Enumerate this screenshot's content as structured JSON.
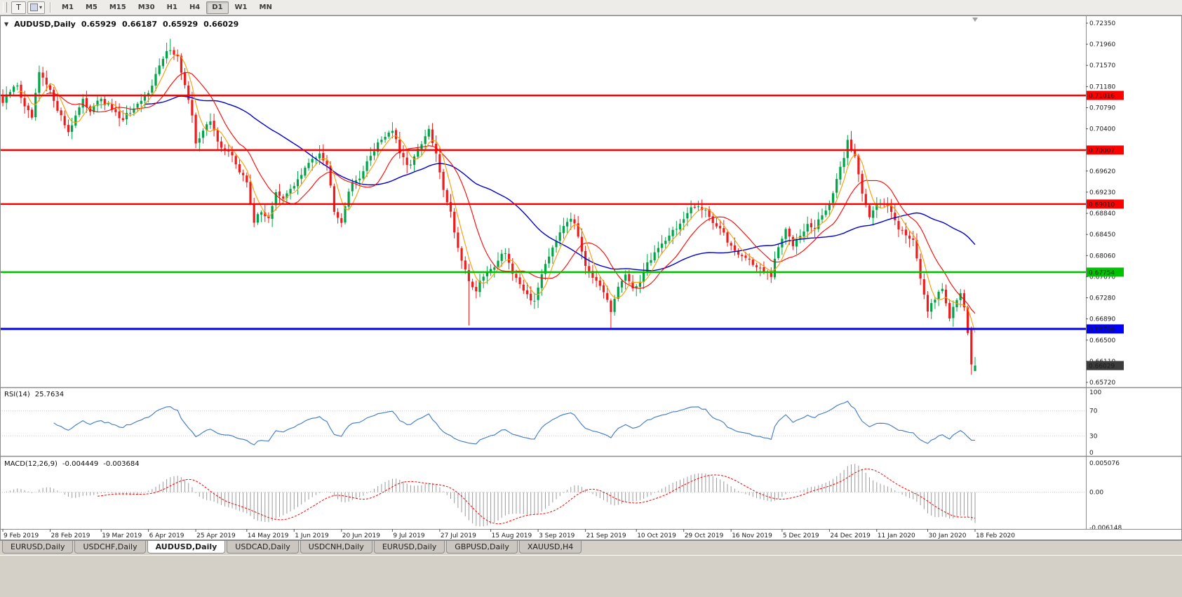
{
  "toolbar": {
    "tool_button": "T",
    "timeframes": [
      "M1",
      "M5",
      "M15",
      "M30",
      "H1",
      "H4",
      "D1",
      "W1",
      "MN"
    ],
    "active_timeframe": "D1"
  },
  "chart": {
    "symbol_title": "AUDUSD,Daily",
    "open": "0.65929",
    "high": "0.66187",
    "low": "0.65929",
    "close": "0.66029"
  },
  "rsi": {
    "label": "RSI(14)",
    "value": "25.7634",
    "period": 14,
    "levels": [
      "100",
      "70",
      "30",
      "0"
    ],
    "color": "#3c78c8"
  },
  "macd": {
    "label": "MACD(12,26,9)",
    "macd_value": "-0.004449",
    "signal_value": "-0.003684",
    "fast": 12,
    "slow": 26,
    "signal": 9,
    "hist_color": "#9a9a9a",
    "signal_color": "#ff0000",
    "ticks": [
      {
        "label": "0.005076",
        "value": 0.005076
      },
      {
        "label": "0.00",
        "value": 0
      },
      {
        "label": "-0.006148",
        "value": -0.006148
      }
    ]
  },
  "price_axis": {
    "ticks": [
      "0.72350",
      "0.71960",
      "0.71570",
      "0.71180",
      "0.70790",
      "0.70400",
      "0.70010",
      "0.69620",
      "0.69230",
      "0.68840",
      "0.68450",
      "0.68060",
      "0.67670",
      "0.67280",
      "0.66890",
      "0.66500",
      "0.66110",
      "0.65720"
    ]
  },
  "time_axis": {
    "labels": [
      "9 Feb 2019",
      "28 Feb 2019",
      "19 Mar 2019",
      "6 Apr 2019",
      "25 Apr 2019",
      "14 May 2019",
      "1 Jun 2019",
      "20 Jun 2019",
      "9 Jul 2019",
      "27 Jul 2019",
      "15 Aug 2019",
      "3 Sep 2019",
      "21 Sep 2019",
      "10 Oct 2019",
      "29 Oct 2019",
      "16 Nov 2019",
      "5 Dec 2019",
      "24 Dec 2019",
      "11 Jan 2020",
      "30 Jan 2020",
      "18 Feb 2020"
    ]
  },
  "tabs": {
    "items": [
      "EURUSD,Daily",
      "USDCHF,Daily",
      "AUDUSD,Daily",
      "USDCAD,Daily",
      "USDCNH,Daily",
      "EURUSD,Daily",
      "GBPUSD,Daily",
      "XAUUSD,H4"
    ],
    "active_index": 2
  },
  "chart_data": {
    "type": "candlestick",
    "symbol": "AUDUSD",
    "period": "Daily",
    "bars_total": 268,
    "price_top_tick": 0.7235,
    "price_bottom_tick": 0.6572,
    "current_price": 0.66029,
    "current_badge_color": "#3c3c3c",
    "colors": {
      "up": "#00a447",
      "down": "#ee1c1c"
    },
    "levels": [
      {
        "label": "0.71016",
        "value": 0.71016,
        "color": "#ff0000",
        "width": 2.5
      },
      {
        "label": "0.70007",
        "value": 0.70007,
        "color": "#ff0000",
        "width": 2.5
      },
      {
        "label": "0.69010",
        "value": 0.6901,
        "color": "#ff0000",
        "width": 2.5
      },
      {
        "label": "0.67754",
        "value": 0.67754,
        "color": "#00c300",
        "width": 2.5
      },
      {
        "label": "0.66706",
        "value": 0.66706,
        "color": "#0000ff",
        "width": 3
      }
    ],
    "moving_averages": [
      {
        "period": 40,
        "color": "#0000cc",
        "width": 1.4
      },
      {
        "period": 13,
        "color": "#ff0000",
        "width": 1.1
      },
      {
        "period": 5,
        "color": "#ff9900",
        "width": 1.1
      }
    ],
    "close_anchors": [
      [
        0,
        0.7088
      ],
      [
        2,
        0.7108
      ],
      [
        4,
        0.7122
      ],
      [
        6,
        0.7078
      ],
      [
        8,
        0.706
      ],
      [
        10,
        0.7142
      ],
      [
        12,
        0.712
      ],
      [
        14,
        0.7095
      ],
      [
        16,
        0.7062
      ],
      [
        18,
        0.7035
      ],
      [
        20,
        0.7065
      ],
      [
        22,
        0.709
      ],
      [
        24,
        0.7075
      ],
      [
        26,
        0.7095
      ],
      [
        28,
        0.7085
      ],
      [
        30,
        0.7078
      ],
      [
        32,
        0.7055
      ],
      [
        34,
        0.7065
      ],
      [
        36,
        0.7072
      ],
      [
        38,
        0.709
      ],
      [
        40,
        0.711
      ],
      [
        42,
        0.714
      ],
      [
        44,
        0.7168
      ],
      [
        46,
        0.719
      ],
      [
        48,
        0.7172
      ],
      [
        50,
        0.712
      ],
      [
        52,
        0.706
      ],
      [
        53,
        0.7015
      ],
      [
        55,
        0.7038
      ],
      [
        57,
        0.7052
      ],
      [
        59,
        0.702
      ],
      [
        61,
        0.6998
      ],
      [
        63,
        0.6992
      ],
      [
        65,
        0.696
      ],
      [
        67,
        0.6942
      ],
      [
        69,
        0.687
      ],
      [
        71,
        0.6885
      ],
      [
        73,
        0.6878
      ],
      [
        75,
        0.692
      ],
      [
        77,
        0.6908
      ],
      [
        79,
        0.693
      ],
      [
        81,
        0.6945
      ],
      [
        83,
        0.6965
      ],
      [
        85,
        0.6985
      ],
      [
        87,
        0.6998
      ],
      [
        89,
        0.6975
      ],
      [
        91,
        0.6892
      ],
      [
        93,
        0.687
      ],
      [
        95,
        0.6928
      ],
      [
        97,
        0.6945
      ],
      [
        99,
        0.6962
      ],
      [
        101,
        0.699
      ],
      [
        103,
        0.7015
      ],
      [
        105,
        0.7028
      ],
      [
        107,
        0.7038
      ],
      [
        109,
        0.6995
      ],
      [
        111,
        0.697
      ],
      [
        113,
        0.6988
      ],
      [
        115,
        0.701
      ],
      [
        117,
        0.7038
      ],
      [
        119,
        0.699
      ],
      [
        121,
        0.693
      ],
      [
        123,
        0.6885
      ],
      [
        125,
        0.682
      ],
      [
        127,
        0.6782
      ],
      [
        128,
        0.6758
      ],
      [
        130,
        0.6742
      ],
      [
        132,
        0.6768
      ],
      [
        134,
        0.6778
      ],
      [
        136,
        0.68
      ],
      [
        138,
        0.6815
      ],
      [
        140,
        0.6772
      ],
      [
        142,
        0.6748
      ],
      [
        144,
        0.6735
      ],
      [
        146,
        0.6718
      ],
      [
        148,
        0.6775
      ],
      [
        150,
        0.6808
      ],
      [
        152,
        0.6838
      ],
      [
        154,
        0.6865
      ],
      [
        156,
        0.6878
      ],
      [
        158,
        0.6842
      ],
      [
        160,
        0.6792
      ],
      [
        162,
        0.6768
      ],
      [
        164,
        0.6745
      ],
      [
        166,
        0.6722
      ],
      [
        167,
        0.67
      ],
      [
        169,
        0.6748
      ],
      [
        171,
        0.6772
      ],
      [
        173,
        0.674
      ],
      [
        175,
        0.6762
      ],
      [
        177,
        0.679
      ],
      [
        179,
        0.6812
      ],
      [
        181,
        0.6828
      ],
      [
        183,
        0.6845
      ],
      [
        185,
        0.6858
      ],
      [
        187,
        0.6872
      ],
      [
        189,
        0.689
      ],
      [
        191,
        0.6898
      ],
      [
        193,
        0.6892
      ],
      [
        195,
        0.6868
      ],
      [
        197,
        0.6855
      ],
      [
        199,
        0.6832
      ],
      [
        201,
        0.6818
      ],
      [
        203,
        0.6805
      ],
      [
        205,
        0.6798
      ],
      [
        207,
        0.6785
      ],
      [
        209,
        0.6775
      ],
      [
        211,
        0.6768
      ],
      [
        213,
        0.6822
      ],
      [
        215,
        0.6852
      ],
      [
        217,
        0.6828
      ],
      [
        219,
        0.6848
      ],
      [
        221,
        0.6862
      ],
      [
        223,
        0.6855
      ],
      [
        225,
        0.6882
      ],
      [
        227,
        0.6902
      ],
      [
        229,
        0.6942
      ],
      [
        231,
        0.699
      ],
      [
        232,
        0.7018
      ],
      [
        234,
        0.6988
      ],
      [
        236,
        0.6925
      ],
      [
        238,
        0.688
      ],
      [
        240,
        0.6898
      ],
      [
        242,
        0.6902
      ],
      [
        244,
        0.6892
      ],
      [
        246,
        0.6858
      ],
      [
        248,
        0.6842
      ],
      [
        250,
        0.6838
      ],
      [
        252,
        0.6768
      ],
      [
        254,
        0.6698
      ],
      [
        256,
        0.6728
      ],
      [
        258,
        0.6748
      ],
      [
        260,
        0.6692
      ],
      [
        262,
        0.6722
      ],
      [
        263,
        0.6738
      ],
      [
        264,
        0.6712
      ],
      [
        265,
        0.6668
      ],
      [
        266,
        0.6605
      ],
      [
        267,
        0.66029
      ]
    ],
    "special_bars": {
      "46": {
        "high": 0.7206
      },
      "128": {
        "low": 0.6677
      },
      "167": {
        "low": 0.667
      }
    },
    "last_bars": [
      {
        "o": 0.6669,
        "h": 0.6675,
        "l": 0.6586,
        "c": 0.6605
      },
      {
        "o": 0.65929,
        "h": 0.66187,
        "l": 0.65929,
        "c": 0.66029
      }
    ]
  }
}
